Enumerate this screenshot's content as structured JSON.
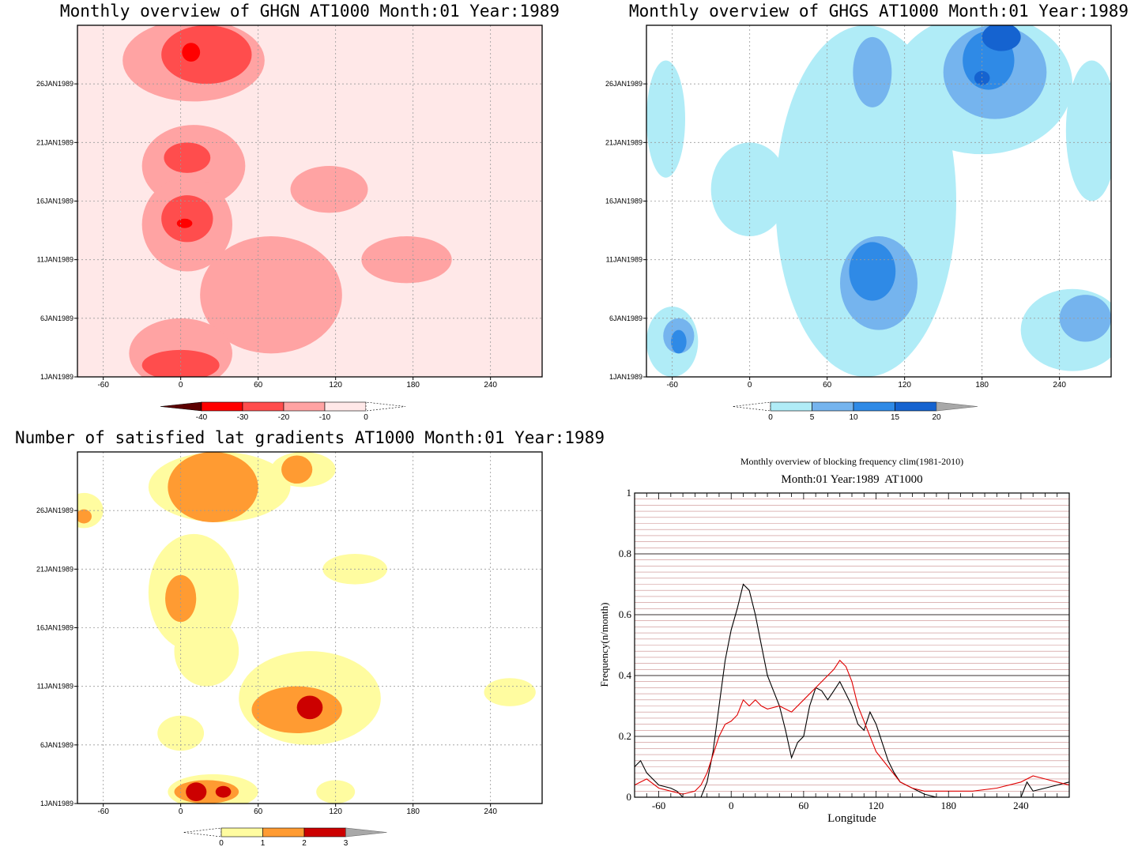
{
  "colors": {
    "red_levels": [
      "#5c0000",
      "#ff0000",
      "#ff4d4d",
      "#ffa3a3",
      "#ffe8e8"
    ],
    "blue_levels": [
      "#b0ecf7",
      "#75b4ee",
      "#2f8ae6",
      "#1563d0"
    ],
    "orange_levels": [
      "#fffca0",
      "#ff9b32",
      "#cc0000"
    ]
  },
  "chart_data": [
    {
      "id": "ghgn",
      "type": "heatmap",
      "title": "Monthly overview of GHGN AT1000 Month:01 Year:1989",
      "x_ticks": [
        -60,
        0,
        60,
        120,
        180,
        240
      ],
      "y_ticks": [
        "1JAN1989",
        "6JAN1989",
        "11JAN1989",
        "16JAN1989",
        "21JAN1989",
        "26JAN1989"
      ],
      "xlim": [
        -80,
        280
      ],
      "ylim": [
        1,
        31
      ],
      "grid": true,
      "colorbar": {
        "labels": [
          "-40",
          "-30",
          "-20",
          "-10",
          "0"
        ]
      },
      "regions": [
        {
          "level": 4,
          "cx": 60,
          "cy": 16,
          "rx": 110,
          "ry": 15
        },
        {
          "level": 3,
          "cx": 10,
          "cy": 28,
          "rx": 55,
          "ry": 3.5
        },
        {
          "level": 3,
          "cx": 10,
          "cy": 19,
          "rx": 40,
          "ry": 3.5
        },
        {
          "level": 3,
          "cx": 5,
          "cy": 14,
          "rx": 35,
          "ry": 4
        },
        {
          "level": 3,
          "cx": 70,
          "cy": 8,
          "rx": 55,
          "ry": 5
        },
        {
          "level": 3,
          "cx": 0,
          "cy": 3,
          "rx": 40,
          "ry": 3
        },
        {
          "level": 3,
          "cx": 115,
          "cy": 17,
          "rx": 30,
          "ry": 2
        },
        {
          "level": 3,
          "cx": 175,
          "cy": 11,
          "rx": 35,
          "ry": 2
        },
        {
          "level": 2,
          "cx": 20,
          "cy": 28.5,
          "rx": 35,
          "ry": 2.5
        },
        {
          "level": 2,
          "cx": 5,
          "cy": 14.5,
          "rx": 20,
          "ry": 2
        },
        {
          "level": 2,
          "cx": 5,
          "cy": 19.7,
          "rx": 18,
          "ry": 1.3
        },
        {
          "level": 2,
          "cx": 0,
          "cy": 2,
          "rx": 30,
          "ry": 1.3
        },
        {
          "level": 1,
          "cx": 8,
          "cy": 28.7,
          "rx": 7,
          "ry": 0.8
        },
        {
          "level": 1,
          "cx": 3,
          "cy": 14.1,
          "rx": 6,
          "ry": 0.4
        }
      ]
    },
    {
      "id": "ghgs",
      "type": "heatmap",
      "title": "Monthly overview of GHGS AT1000 Month:01 Year:1989",
      "x_ticks": [
        -60,
        0,
        60,
        120,
        180,
        240
      ],
      "y_ticks": [
        "1JAN1989",
        "6JAN1989",
        "11JAN1989",
        "16JAN1989",
        "21JAN1989",
        "26JAN1989"
      ],
      "xlim": [
        -80,
        280
      ],
      "ylim": [
        1,
        31
      ],
      "grid": true,
      "colorbar": {
        "labels": [
          "0",
          "5",
          "10",
          "15",
          "20"
        ]
      },
      "regions": [
        {
          "level": 0,
          "cx": 90,
          "cy": 16,
          "rx": 70,
          "ry": 15
        },
        {
          "level": 0,
          "cx": 180,
          "cy": 26,
          "rx": 70,
          "ry": 6
        },
        {
          "level": 0,
          "cx": 250,
          "cy": 5,
          "rx": 40,
          "ry": 3.5
        },
        {
          "level": 0,
          "cx": -60,
          "cy": 4,
          "rx": 20,
          "ry": 3
        },
        {
          "level": 0,
          "cx": 0,
          "cy": 17,
          "rx": 30,
          "ry": 4
        },
        {
          "level": 0,
          "cx": 265,
          "cy": 22,
          "rx": 20,
          "ry": 6
        },
        {
          "level": 0,
          "cx": -65,
          "cy": 23,
          "rx": 15,
          "ry": 5
        },
        {
          "level": 1,
          "cx": 100,
          "cy": 9,
          "rx": 30,
          "ry": 4
        },
        {
          "level": 1,
          "cx": 190,
          "cy": 27,
          "rx": 40,
          "ry": 4
        },
        {
          "level": 1,
          "cx": 95,
          "cy": 27,
          "rx": 15,
          "ry": 3
        },
        {
          "level": 1,
          "cx": 260,
          "cy": 6,
          "rx": 20,
          "ry": 2
        },
        {
          "level": 1,
          "cx": -55,
          "cy": 4.5,
          "rx": 12,
          "ry": 1.5
        },
        {
          "level": 2,
          "cx": 95,
          "cy": 10,
          "rx": 18,
          "ry": 2.5
        },
        {
          "level": 2,
          "cx": 185,
          "cy": 28,
          "rx": 20,
          "ry": 2.5
        },
        {
          "level": 2,
          "cx": -55,
          "cy": 4,
          "rx": 6,
          "ry": 1
        },
        {
          "level": 3,
          "cx": 195,
          "cy": 30,
          "rx": 15,
          "ry": 1.2
        },
        {
          "level": 3,
          "cx": 180,
          "cy": 26.5,
          "rx": 6,
          "ry": 0.6
        }
      ]
    },
    {
      "id": "gradients",
      "type": "heatmap",
      "title": "Number of satisfied lat gradients AT1000 Month:01 Year:1989",
      "x_ticks": [
        -60,
        0,
        60,
        120,
        180,
        240
      ],
      "y_ticks": [
        "1JAN1989",
        "6JAN1989",
        "11JAN1989",
        "16JAN1989",
        "21JAN1989",
        "26JAN1989"
      ],
      "xlim": [
        -80,
        280
      ],
      "ylim": [
        1,
        31
      ],
      "grid": true,
      "colorbar": {
        "labels": [
          "0",
          "1",
          "2",
          "3"
        ]
      },
      "regions": [
        {
          "level": 0,
          "cx": 30,
          "cy": 28,
          "rx": 55,
          "ry": 3
        },
        {
          "level": 0,
          "cx": 95,
          "cy": 29.5,
          "rx": 25,
          "ry": 1.5
        },
        {
          "level": 0,
          "cx": 10,
          "cy": 19,
          "rx": 35,
          "ry": 5
        },
        {
          "level": 0,
          "cx": 20,
          "cy": 14,
          "rx": 25,
          "ry": 3
        },
        {
          "level": 0,
          "cx": 100,
          "cy": 10,
          "rx": 55,
          "ry": 4
        },
        {
          "level": 0,
          "cx": 135,
          "cy": 21,
          "rx": 25,
          "ry": 1.3
        },
        {
          "level": 0,
          "cx": 25,
          "cy": 2,
          "rx": 35,
          "ry": 1.5
        },
        {
          "level": 0,
          "cx": 0,
          "cy": 7,
          "rx": 18,
          "ry": 1.5
        },
        {
          "level": 0,
          "cx": 120,
          "cy": 2,
          "rx": 15,
          "ry": 1
        },
        {
          "level": 0,
          "cx": -75,
          "cy": 26,
          "rx": 15,
          "ry": 1.5
        },
        {
          "level": 0,
          "cx": 255,
          "cy": 10.5,
          "rx": 20,
          "ry": 1.2
        },
        {
          "level": 1,
          "cx": 25,
          "cy": 28,
          "rx": 35,
          "ry": 3
        },
        {
          "level": 1,
          "cx": 90,
          "cy": 29.5,
          "rx": 12,
          "ry": 1.2
        },
        {
          "level": 1,
          "cx": 0,
          "cy": 18.5,
          "rx": 12,
          "ry": 2
        },
        {
          "level": 1,
          "cx": 90,
          "cy": 9,
          "rx": 35,
          "ry": 2
        },
        {
          "level": 1,
          "cx": 20,
          "cy": 2,
          "rx": 25,
          "ry": 1
        },
        {
          "level": 1,
          "cx": -75,
          "cy": 25.5,
          "rx": 6,
          "ry": 0.6
        },
        {
          "level": 2,
          "cx": 100,
          "cy": 9.2,
          "rx": 10,
          "ry": 1
        },
        {
          "level": 2,
          "cx": 12,
          "cy": 2,
          "rx": 8,
          "ry": 0.8
        },
        {
          "level": 2,
          "cx": 33,
          "cy": 2,
          "rx": 6,
          "ry": 0.5
        }
      ]
    },
    {
      "id": "blocking",
      "type": "line",
      "title": "Monthly overview of blocking frequency clim(1981-2010)",
      "subtitle": "Month:01 Year:1989  AT1000",
      "xlabel": "Longitude",
      "ylabel": "Frequency(n/month)",
      "xlim": [
        -80,
        280
      ],
      "ylim": [
        0,
        1
      ],
      "x_ticks": [
        -60,
        0,
        60,
        120,
        180,
        240
      ],
      "y_ticks": [
        "0",
        "0.2",
        "0.4",
        "0.6",
        "0.8",
        "1"
      ],
      "series": [
        {
          "color": "#000000",
          "x": [
            -80,
            -75,
            -70,
            -60,
            -50,
            -45,
            -40,
            -30,
            -25,
            -20,
            -15,
            -10,
            -5,
            0,
            5,
            10,
            15,
            20,
            25,
            30,
            35,
            40,
            45,
            50,
            55,
            60,
            65,
            70,
            75,
            80,
            85,
            90,
            95,
            100,
            105,
            110,
            115,
            120,
            125,
            130,
            135,
            140,
            150,
            160,
            170,
            180,
            190,
            200,
            210,
            220,
            230,
            240,
            245,
            250,
            260,
            270,
            280
          ],
          "y": [
            0.1,
            0.12,
            0.08,
            0.04,
            0.03,
            0.02,
            0.0,
            0.0,
            0.0,
            0.05,
            0.15,
            0.3,
            0.45,
            0.55,
            0.62,
            0.7,
            0.68,
            0.6,
            0.5,
            0.4,
            0.35,
            0.3,
            0.22,
            0.13,
            0.18,
            0.2,
            0.3,
            0.36,
            0.35,
            0.32,
            0.35,
            0.38,
            0.34,
            0.3,
            0.24,
            0.22,
            0.28,
            0.24,
            0.18,
            0.12,
            0.08,
            0.05,
            0.03,
            0.01,
            0.0,
            0.0,
            0.0,
            0.0,
            0.0,
            0.0,
            0.0,
            0.0,
            0.05,
            0.02,
            0.03,
            0.04,
            0.05
          ]
        },
        {
          "color": "#e00000",
          "x": [
            -80,
            -75,
            -70,
            -60,
            -50,
            -40,
            -30,
            -25,
            -20,
            -15,
            -10,
            -5,
            0,
            5,
            10,
            15,
            20,
            25,
            30,
            40,
            50,
            60,
            70,
            80,
            85,
            90,
            95,
            100,
            105,
            110,
            115,
            120,
            130,
            140,
            150,
            160,
            180,
            200,
            220,
            240,
            250,
            260,
            270,
            280
          ],
          "y": [
            0.04,
            0.05,
            0.06,
            0.03,
            0.02,
            0.01,
            0.02,
            0.04,
            0.08,
            0.14,
            0.2,
            0.24,
            0.25,
            0.27,
            0.32,
            0.3,
            0.32,
            0.3,
            0.29,
            0.3,
            0.28,
            0.32,
            0.36,
            0.4,
            0.42,
            0.45,
            0.43,
            0.38,
            0.3,
            0.25,
            0.2,
            0.15,
            0.1,
            0.05,
            0.03,
            0.02,
            0.02,
            0.02,
            0.03,
            0.05,
            0.07,
            0.06,
            0.05,
            0.04
          ]
        }
      ]
    }
  ]
}
